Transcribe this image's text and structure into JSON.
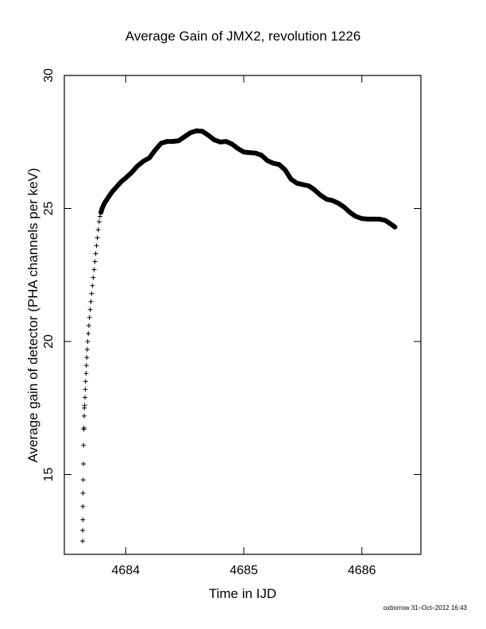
{
  "chart_data": {
    "type": "scatter",
    "title": "Average Gain of JMX2, revolution 1226",
    "xlabel": "Time in IJD",
    "ylabel": "Average gain of detector (PHA channels per keV)",
    "xlim": [
      4683.48,
      4686.5
    ],
    "ylim": [
      12,
      30
    ],
    "xticks": [
      4684,
      4685,
      4686
    ],
    "yticks": [
      15,
      20,
      25,
      30
    ],
    "marker": "+",
    "grid": false,
    "legend": "none",
    "series": [
      {
        "points": [
          [
            4683.635,
            12.5
          ],
          [
            4683.635,
            12.9
          ],
          [
            4683.637,
            13.3
          ],
          [
            4683.637,
            13.8
          ],
          [
            4683.638,
            14.3
          ],
          [
            4683.64,
            14.8
          ],
          [
            4683.642,
            15.4
          ],
          [
            4683.643,
            16.1
          ],
          [
            4683.645,
            16.7
          ],
          [
            4683.646,
            16.75
          ],
          [
            4683.648,
            17.2
          ],
          [
            4683.65,
            17.5
          ],
          [
            4683.652,
            17.6
          ],
          [
            4683.655,
            17.9
          ],
          [
            4683.658,
            18.2
          ],
          [
            4683.66,
            18.5
          ],
          [
            4683.664,
            18.8
          ],
          [
            4683.667,
            19.1
          ],
          [
            4683.67,
            19.4
          ],
          [
            4683.674,
            19.7
          ],
          [
            4683.678,
            20.0
          ],
          [
            4683.683,
            20.3
          ],
          [
            4683.688,
            20.6
          ],
          [
            4683.693,
            20.9
          ],
          [
            4683.699,
            21.2
          ],
          [
            4683.705,
            21.5
          ],
          [
            4683.711,
            21.8
          ],
          [
            4683.718,
            22.1
          ],
          [
            4683.725,
            22.4
          ],
          [
            4683.732,
            22.7
          ],
          [
            4683.739,
            23.0
          ],
          [
            4683.746,
            23.3
          ],
          [
            4683.753,
            23.6
          ],
          [
            4683.76,
            23.9
          ],
          [
            4683.767,
            24.2
          ],
          [
            4683.775,
            24.5
          ],
          [
            4683.782,
            24.7
          ],
          [
            4683.79,
            24.85
          ],
          [
            4683.8,
            25.0
          ],
          [
            4683.82,
            25.2
          ],
          [
            4683.85,
            25.4
          ],
          [
            4683.88,
            25.6
          ],
          [
            4683.92,
            25.8
          ],
          [
            4683.96,
            26.0
          ],
          [
            4684.0,
            26.15
          ],
          [
            4684.05,
            26.35
          ],
          [
            4684.1,
            26.6
          ],
          [
            4684.15,
            26.78
          ],
          [
            4684.2,
            26.9
          ],
          [
            4684.25,
            27.2
          ],
          [
            4684.3,
            27.45
          ],
          [
            4684.35,
            27.52
          ],
          [
            4684.4,
            27.52
          ],
          [
            4684.45,
            27.55
          ],
          [
            4684.5,
            27.7
          ],
          [
            4684.55,
            27.85
          ],
          [
            4684.6,
            27.92
          ],
          [
            4684.65,
            27.9
          ],
          [
            4684.7,
            27.75
          ],
          [
            4684.75,
            27.58
          ],
          [
            4684.8,
            27.5
          ],
          [
            4684.85,
            27.52
          ],
          [
            4684.9,
            27.42
          ],
          [
            4684.95,
            27.25
          ],
          [
            4685.0,
            27.12
          ],
          [
            4685.05,
            27.1
          ],
          [
            4685.1,
            27.08
          ],
          [
            4685.15,
            27.0
          ],
          [
            4685.2,
            26.8
          ],
          [
            4685.25,
            26.7
          ],
          [
            4685.3,
            26.65
          ],
          [
            4685.35,
            26.45
          ],
          [
            4685.4,
            26.1
          ],
          [
            4685.45,
            25.95
          ],
          [
            4685.5,
            25.9
          ],
          [
            4685.55,
            25.85
          ],
          [
            4685.6,
            25.7
          ],
          [
            4685.65,
            25.5
          ],
          [
            4685.7,
            25.35
          ],
          [
            4685.75,
            25.3
          ],
          [
            4685.8,
            25.2
          ],
          [
            4685.85,
            25.05
          ],
          [
            4685.9,
            24.85
          ],
          [
            4685.95,
            24.7
          ],
          [
            4686.0,
            24.62
          ],
          [
            4686.05,
            24.6
          ],
          [
            4686.1,
            24.6
          ],
          [
            4686.15,
            24.6
          ],
          [
            4686.2,
            24.55
          ],
          [
            4686.25,
            24.4
          ],
          [
            4686.28,
            24.3
          ]
        ]
      }
    ]
  },
  "footer": "oxborrow 31–Oct–2012 16:43",
  "colors": {
    "marker": "#000000",
    "axes": "#000000",
    "background": "#ffffff"
  }
}
